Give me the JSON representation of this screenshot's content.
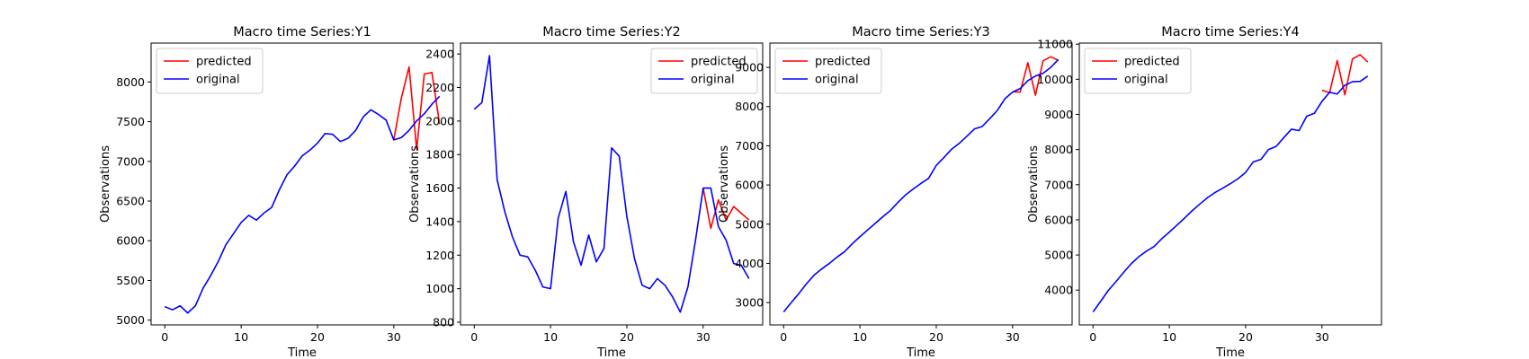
{
  "colors": {
    "predicted": "#ff0000",
    "original": "#0000ff"
  },
  "chart_data": [
    {
      "type": "line",
      "title": "Macro time Series:Y1",
      "xlabel": "Time",
      "ylabel": "Observations",
      "xlim": [
        -1.8,
        37.8
      ],
      "ylim": [
        4940,
        8490
      ],
      "xticks": [
        0,
        10,
        20,
        30
      ],
      "yticks": [
        5000,
        5500,
        6000,
        6500,
        7000,
        7500,
        8000
      ],
      "legend": "top-left",
      "series": [
        {
          "name": "predicted",
          "color": "#ff0000",
          "x": [
            30,
            31,
            32,
            33,
            34,
            35,
            36
          ],
          "values": [
            7270,
            7800,
            8190,
            7150,
            8100,
            8120,
            7470
          ]
        },
        {
          "name": "original",
          "color": "#0000ff",
          "x": [
            0,
            1,
            2,
            3,
            4,
            5,
            6,
            7,
            8,
            9,
            10,
            11,
            12,
            13,
            14,
            15,
            16,
            17,
            18,
            19,
            20,
            21,
            22,
            23,
            24,
            25,
            26,
            27,
            28,
            29,
            30,
            31,
            32,
            33,
            34,
            35,
            36
          ],
          "values": [
            5170,
            5130,
            5180,
            5090,
            5180,
            5400,
            5560,
            5740,
            5950,
            6090,
            6230,
            6320,
            6260,
            6350,
            6420,
            6640,
            6830,
            6940,
            7070,
            7140,
            7230,
            7350,
            7340,
            7250,
            7290,
            7390,
            7560,
            7650,
            7590,
            7520,
            7270,
            7300,
            7390,
            7510,
            7600,
            7720,
            7820
          ]
        }
      ]
    },
    {
      "type": "line",
      "title": "Macro time Series:Y2",
      "xlabel": "Time",
      "ylabel": "Observations",
      "xlim": [
        -1.8,
        37.8
      ],
      "ylim": [
        784,
        2465
      ],
      "xticks": [
        0,
        10,
        20,
        30
      ],
      "yticks": [
        800,
        1000,
        1200,
        1400,
        1600,
        1800,
        2000,
        2200,
        2400
      ],
      "legend": "top-right",
      "series": [
        {
          "name": "predicted",
          "color": "#ff0000",
          "x": [
            30,
            31,
            32,
            33,
            34,
            35,
            36
          ],
          "values": [
            1600,
            1360,
            1530,
            1410,
            1490,
            1450,
            1410
          ]
        },
        {
          "name": "original",
          "color": "#0000ff",
          "x": [
            0,
            1,
            2,
            3,
            4,
            5,
            6,
            7,
            8,
            9,
            10,
            11,
            12,
            13,
            14,
            15,
            16,
            17,
            18,
            19,
            20,
            21,
            22,
            23,
            24,
            25,
            26,
            27,
            28,
            29,
            30,
            31,
            32,
            33,
            34,
            35,
            36
          ],
          "values": [
            2070,
            2110,
            2390,
            1650,
            1460,
            1310,
            1200,
            1190,
            1110,
            1010,
            1000,
            1420,
            1580,
            1280,
            1140,
            1320,
            1160,
            1240,
            1840,
            1790,
            1430,
            1180,
            1020,
            1000,
            1060,
            1020,
            950,
            860,
            1010,
            1290,
            1600,
            1600,
            1370,
            1290,
            1150,
            1140,
            1060
          ]
        }
      ]
    },
    {
      "type": "line",
      "title": "Macro time Series:Y3",
      "xlabel": "Time",
      "ylabel": "Observations",
      "xlim": [
        -1.8,
        37.8
      ],
      "ylim": [
        2430,
        9620
      ],
      "xticks": [
        0,
        10,
        20,
        30
      ],
      "yticks": [
        3000,
        4000,
        5000,
        6000,
        7000,
        8000,
        9000
      ],
      "legend": "top-left",
      "series": [
        {
          "name": "predicted",
          "color": "#ff0000",
          "x": [
            30,
            31,
            32,
            33,
            34,
            35,
            36
          ],
          "values": [
            8380,
            8370,
            9120,
            8290,
            9170,
            9270,
            9180
          ]
        },
        {
          "name": "original",
          "color": "#0000ff",
          "x": [
            0,
            1,
            2,
            3,
            4,
            5,
            6,
            7,
            8,
            9,
            10,
            11,
            12,
            13,
            14,
            15,
            16,
            17,
            18,
            19,
            20,
            21,
            22,
            23,
            24,
            25,
            26,
            27,
            28,
            29,
            30,
            31,
            32,
            33,
            34,
            35,
            36
          ],
          "values": [
            2760,
            3000,
            3230,
            3480,
            3700,
            3860,
            4000,
            4160,
            4300,
            4500,
            4680,
            4850,
            5020,
            5190,
            5350,
            5560,
            5750,
            5900,
            6040,
            6170,
            6500,
            6700,
            6910,
            7060,
            7240,
            7430,
            7490,
            7690,
            7900,
            8200,
            8370,
            8460,
            8660,
            8780,
            8850,
            9000,
            9200
          ]
        }
      ]
    },
    {
      "type": "line",
      "title": "Macro time Series:Y4",
      "xlabel": "Time",
      "ylabel": "Observations",
      "xlim": [
        -1.8,
        37.8
      ],
      "ylim": [
        3010,
        11030
      ],
      "xticks": [
        0,
        10,
        20,
        30
      ],
      "yticks": [
        4000,
        5000,
        6000,
        7000,
        8000,
        9000,
        10000,
        11000
      ],
      "legend": "top-left",
      "series": [
        {
          "name": "predicted",
          "color": "#ff0000",
          "x": [
            30,
            31,
            32,
            33,
            34,
            35,
            36
          ],
          "values": [
            9690,
            9620,
            10530,
            9560,
            10580,
            10700,
            10490
          ]
        },
        {
          "name": "original",
          "color": "#0000ff",
          "x": [
            0,
            1,
            2,
            3,
            4,
            5,
            6,
            7,
            8,
            9,
            10,
            11,
            12,
            13,
            14,
            15,
            16,
            17,
            18,
            19,
            20,
            21,
            22,
            23,
            24,
            25,
            26,
            27,
            28,
            29,
            30,
            31,
            32,
            33,
            34,
            35,
            36
          ],
          "values": [
            3380,
            3680,
            3990,
            4240,
            4500,
            4750,
            4950,
            5110,
            5240,
            5460,
            5650,
            5850,
            6050,
            6260,
            6450,
            6630,
            6780,
            6900,
            7030,
            7170,
            7350,
            7650,
            7720,
            8000,
            8090,
            8340,
            8580,
            8540,
            8950,
            9030,
            9370,
            9630,
            9580,
            9830,
            9930,
            9940,
            10090
          ]
        }
      ]
    }
  ]
}
